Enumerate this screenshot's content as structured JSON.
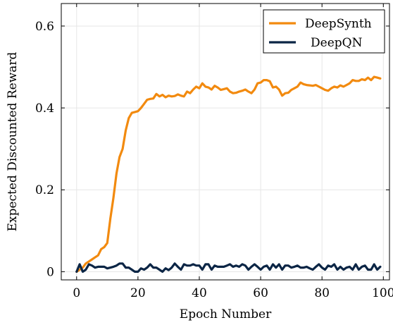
{
  "chart_data": {
    "type": "line",
    "title": "",
    "xlabel": "Epoch Number",
    "ylabel": "Expected Discounted Reward",
    "xlim": [
      -5,
      102
    ],
    "ylim": [
      -0.02,
      0.655
    ],
    "xticks": [
      0,
      20,
      40,
      60,
      80,
      100
    ],
    "yticks": [
      0,
      0.2,
      0.4,
      0.6
    ],
    "xtick_labels": [
      "0",
      "20",
      "40",
      "60",
      "80",
      "100"
    ],
    "ytick_labels": [
      "0",
      "0.2",
      "0.4",
      "0.6"
    ],
    "grid": true,
    "legend_position": "top-right",
    "series": [
      {
        "name": "DeepSynth",
        "color": "#f28a0f",
        "x": [
          0,
          1,
          2,
          3,
          4,
          5,
          6,
          7,
          8,
          9,
          10,
          11,
          12,
          13,
          14,
          15,
          16,
          17,
          18,
          19,
          20,
          21,
          22,
          23,
          24,
          25,
          26,
          27,
          28,
          29,
          30,
          31,
          32,
          33,
          34,
          35,
          36,
          37,
          38,
          39,
          40,
          41,
          42,
          43,
          44,
          45,
          46,
          47,
          48,
          49,
          50,
          51,
          52,
          53,
          54,
          55,
          56,
          57,
          58,
          59,
          60,
          61,
          62,
          63,
          64,
          65,
          66,
          67,
          68,
          69,
          70,
          71,
          72,
          73,
          74,
          75,
          76,
          77,
          78,
          79,
          80,
          81,
          82,
          83,
          84,
          85,
          86,
          87,
          88,
          89,
          90,
          91,
          92,
          93,
          94,
          95,
          96,
          97,
          98,
          99
        ],
        "y": [
          0.0,
          0.005,
          0.01,
          0.02,
          0.025,
          0.03,
          0.035,
          0.04,
          0.055,
          0.06,
          0.07,
          0.13,
          0.18,
          0.24,
          0.28,
          0.3,
          0.345,
          0.375,
          0.388,
          0.39,
          0.392,
          0.4,
          0.41,
          0.42,
          0.422,
          0.423,
          0.434,
          0.428,
          0.432,
          0.426,
          0.43,
          0.428,
          0.429,
          0.433,
          0.43,
          0.428,
          0.44,
          0.436,
          0.445,
          0.452,
          0.448,
          0.46,
          0.452,
          0.45,
          0.445,
          0.454,
          0.45,
          0.444,
          0.446,
          0.448,
          0.44,
          0.436,
          0.437,
          0.44,
          0.442,
          0.445,
          0.44,
          0.436,
          0.445,
          0.46,
          0.462,
          0.468,
          0.468,
          0.465,
          0.45,
          0.452,
          0.445,
          0.43,
          0.436,
          0.437,
          0.444,
          0.448,
          0.452,
          0.462,
          0.458,
          0.456,
          0.455,
          0.454,
          0.456,
          0.452,
          0.448,
          0.444,
          0.442,
          0.448,
          0.452,
          0.45,
          0.455,
          0.452,
          0.456,
          0.46,
          0.468,
          0.466,
          0.466,
          0.47,
          0.468,
          0.474,
          0.468,
          0.476,
          0.474,
          0.472
        ]
      },
      {
        "name": "DeepQN",
        "color": "#0b2545",
        "x": [
          0,
          1,
          2,
          3,
          4,
          5,
          6,
          7,
          8,
          9,
          10,
          11,
          12,
          13,
          14,
          15,
          16,
          17,
          18,
          19,
          20,
          21,
          22,
          23,
          24,
          25,
          26,
          27,
          28,
          29,
          30,
          31,
          32,
          33,
          34,
          35,
          36,
          37,
          38,
          39,
          40,
          41,
          42,
          43,
          44,
          45,
          46,
          47,
          48,
          49,
          50,
          51,
          52,
          53,
          54,
          55,
          56,
          57,
          58,
          59,
          60,
          61,
          62,
          63,
          64,
          65,
          66,
          67,
          68,
          69,
          70,
          71,
          72,
          73,
          74,
          75,
          76,
          77,
          78,
          79,
          80,
          81,
          82,
          83,
          84,
          85,
          86,
          87,
          88,
          89,
          90,
          91,
          92,
          93,
          94,
          95,
          96,
          97,
          98,
          99
        ],
        "y": [
          0.0,
          0.018,
          0.0,
          0.005,
          0.018,
          0.015,
          0.01,
          0.012,
          0.012,
          0.012,
          0.008,
          0.01,
          0.012,
          0.015,
          0.02,
          0.02,
          0.01,
          0.01,
          0.005,
          0.0,
          0.0,
          0.008,
          0.005,
          0.01,
          0.018,
          0.01,
          0.01,
          0.005,
          0.0,
          0.008,
          0.004,
          0.01,
          0.02,
          0.012,
          0.005,
          0.018,
          0.015,
          0.015,
          0.018,
          0.015,
          0.015,
          0.005,
          0.018,
          0.018,
          0.005,
          0.015,
          0.012,
          0.012,
          0.012,
          0.015,
          0.018,
          0.012,
          0.015,
          0.012,
          0.018,
          0.015,
          0.005,
          0.012,
          0.018,
          0.012,
          0.005,
          0.012,
          0.015,
          0.005,
          0.018,
          0.01,
          0.018,
          0.005,
          0.015,
          0.015,
          0.01,
          0.012,
          0.015,
          0.01,
          0.01,
          0.012,
          0.008,
          0.005,
          0.012,
          0.018,
          0.01,
          0.005,
          0.015,
          0.012,
          0.018,
          0.005,
          0.012,
          0.005,
          0.01,
          0.012,
          0.005,
          0.018,
          0.005,
          0.012,
          0.015,
          0.005,
          0.005,
          0.018,
          0.005,
          0.012
        ]
      }
    ]
  }
}
